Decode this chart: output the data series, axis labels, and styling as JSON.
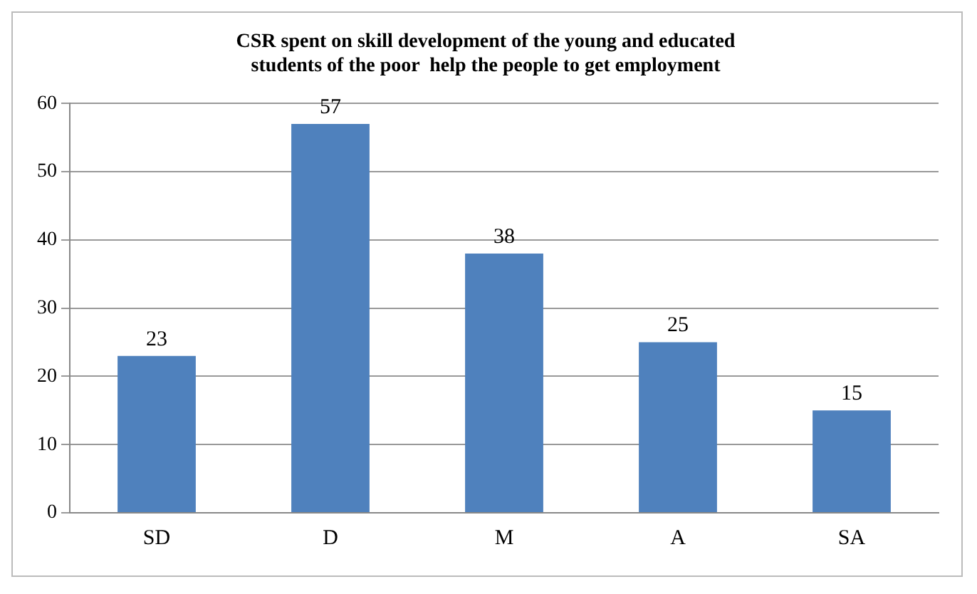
{
  "chart_data": {
    "type": "bar",
    "title": [
      "CSR spent on skill development of the young and educated",
      "students of the poor  help the people to get employment"
    ],
    "categories": [
      "SD",
      "D",
      "M",
      "A",
      "SA"
    ],
    "values": [
      23,
      57,
      38,
      25,
      15
    ],
    "color": "#4f81bd",
    "ylim": [
      0,
      60
    ],
    "yticks": [
      0,
      10,
      20,
      30,
      40,
      50,
      60
    ],
    "grid": "y",
    "data_labels": true,
    "legend": false
  }
}
